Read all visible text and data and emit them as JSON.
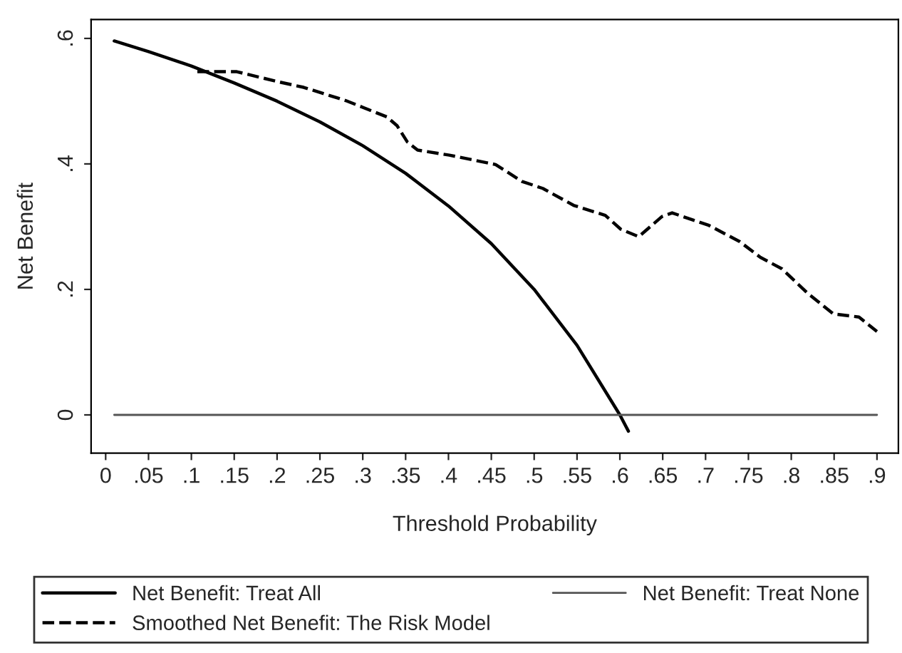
{
  "chart_data": {
    "type": "line",
    "xlabel": "Threshold Probability",
    "ylabel": "Net Benefit",
    "xlim": [
      -0.017,
      0.925
    ],
    "ylim": [
      -0.061,
      0.63
    ],
    "xticks": [
      {
        "value": 0,
        "label": "0"
      },
      {
        "value": 0.05,
        "label": ".05"
      },
      {
        "value": 0.1,
        "label": ".1"
      },
      {
        "value": 0.15,
        "label": ".15"
      },
      {
        "value": 0.2,
        "label": ".2"
      },
      {
        "value": 0.25,
        "label": ".25"
      },
      {
        "value": 0.3,
        "label": ".3"
      },
      {
        "value": 0.35,
        "label": ".35"
      },
      {
        "value": 0.4,
        "label": ".4"
      },
      {
        "value": 0.45,
        "label": ".45"
      },
      {
        "value": 0.5,
        "label": ".5"
      },
      {
        "value": 0.55,
        "label": ".55"
      },
      {
        "value": 0.6,
        "label": ".6"
      },
      {
        "value": 0.65,
        "label": ".65"
      },
      {
        "value": 0.7,
        "label": ".7"
      },
      {
        "value": 0.75,
        "label": ".75"
      },
      {
        "value": 0.8,
        "label": ".8"
      },
      {
        "value": 0.85,
        "label": ".85"
      },
      {
        "value": 0.9,
        "label": ".9"
      }
    ],
    "yticks": [
      {
        "value": 0,
        "label": "0"
      },
      {
        "value": 0.2,
        "label": ".2"
      },
      {
        "value": 0.4,
        "label": ".4"
      },
      {
        "value": 0.6,
        "label": ".6"
      }
    ],
    "grid": false,
    "legend": "bottom",
    "series": [
      {
        "name": "Net Benefit: Treat All",
        "color": "#000000",
        "line_style": "solid",
        "x": [
          0.01,
          0.05,
          0.1,
          0.15,
          0.2,
          0.25,
          0.3,
          0.35,
          0.4,
          0.45,
          0.5,
          0.55,
          0.6,
          0.61
        ],
        "values": [
          0.596,
          0.579,
          0.556,
          0.529,
          0.5,
          0.467,
          0.429,
          0.385,
          0.333,
          0.273,
          0.2,
          0.111,
          0.0,
          -0.026
        ]
      },
      {
        "name": "Net Benefit: Treat None",
        "color": "#555555",
        "line_style": "solid",
        "x": [
          0.01,
          0.9
        ],
        "values": [
          0,
          0
        ]
      },
      {
        "name": "Smoothed Net Benefit: The Risk Model",
        "color": "#000000",
        "line_style": "dashed",
        "x": [
          0.107,
          0.153,
          0.201,
          0.231,
          0.28,
          0.328,
          0.34,
          0.352,
          0.364,
          0.401,
          0.455,
          0.486,
          0.51,
          0.546,
          0.583,
          0.601,
          0.622,
          0.649,
          0.661,
          0.704,
          0.74,
          0.764,
          0.789,
          0.819,
          0.849,
          0.879,
          0.9
        ],
        "values": [
          0.547,
          0.547,
          0.531,
          0.522,
          0.501,
          0.475,
          0.461,
          0.435,
          0.422,
          0.414,
          0.399,
          0.372,
          0.361,
          0.334,
          0.318,
          0.296,
          0.284,
          0.316,
          0.322,
          0.302,
          0.276,
          0.251,
          0.233,
          0.194,
          0.161,
          0.156,
          0.133
        ]
      }
    ]
  }
}
